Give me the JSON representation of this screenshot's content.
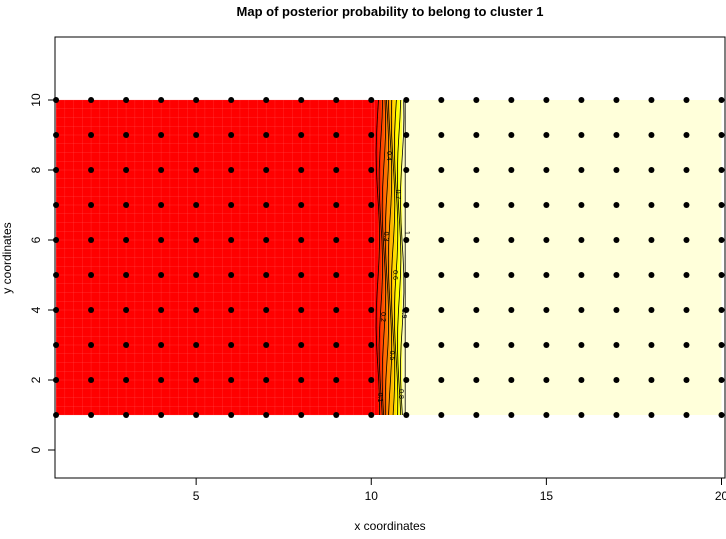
{
  "chart_data": {
    "type": "heatmap",
    "title": "Map of posterior probability to belong to cluster  1",
    "xlabel": "x coordinates",
    "ylabel": "y coordinates",
    "xlim": [
      0.97,
      20.1
    ],
    "ylim": [
      -0.8,
      11.8
    ],
    "x_ticks": [
      5,
      10,
      15,
      20
    ],
    "y_ticks": [
      0,
      2,
      4,
      6,
      8,
      10
    ],
    "grid": false,
    "fill_region": {
      "x": [
        1,
        20
      ],
      "y": [
        1,
        10
      ]
    },
    "points": {
      "x": [
        1,
        2,
        3,
        4,
        5,
        6,
        7,
        8,
        9,
        10,
        11,
        12,
        13,
        14,
        15,
        16,
        17,
        18,
        19,
        20
      ],
      "y": [
        1,
        2,
        3,
        4,
        5,
        6,
        7,
        8,
        9,
        10
      ]
    },
    "contour_levels": [
      0.1,
      0.2,
      0.3,
      0.4,
      0.5,
      0.6,
      0.7,
      0.8,
      0.9,
      1
    ],
    "contour_labels": [
      "0.1",
      "0.2",
      "0.3",
      "0.4",
      "0.5",
      "0.6",
      "0.7",
      "0.8",
      "0.9",
      "1"
    ],
    "transition_x": [
      10.1,
      10.97
    ],
    "colors": {
      "low": "#FF0000",
      "high": "#FFFFDA",
      "bands": [
        "#FF0000",
        "#FF2400",
        "#FF4900",
        "#FF6D00",
        "#FF9200",
        "#FFB600",
        "#FFDB00",
        "#FFFF00",
        "#FFFF40",
        "#FFFFBF"
      ],
      "points": "#000000"
    }
  }
}
